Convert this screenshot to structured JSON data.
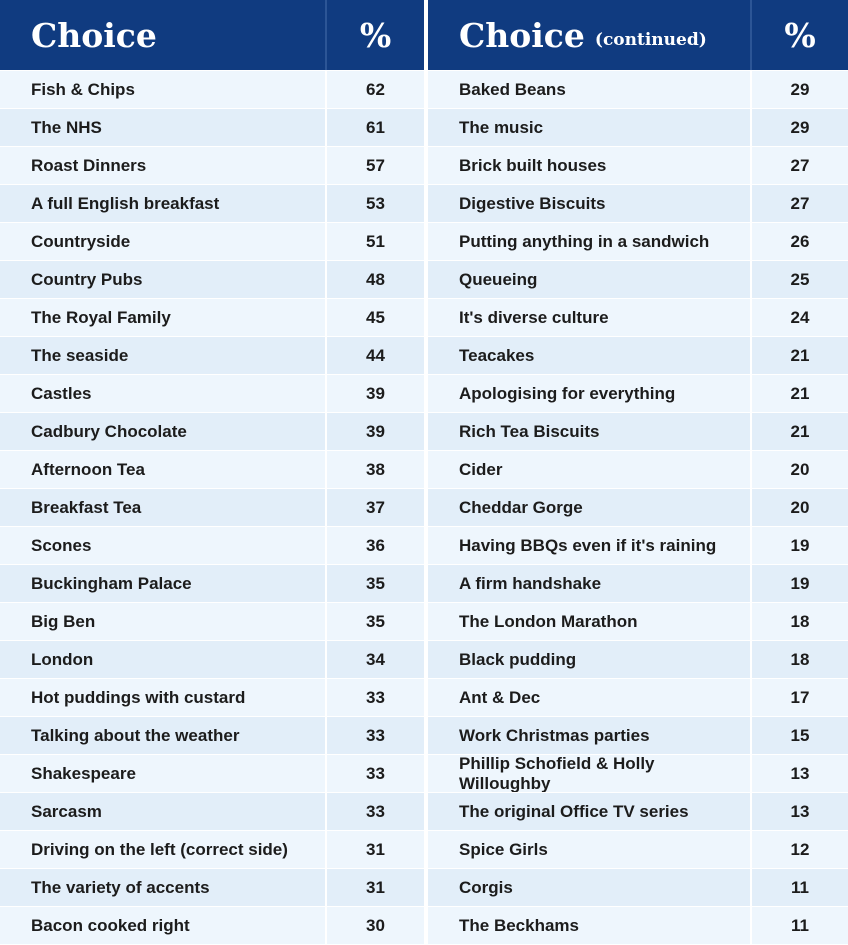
{
  "tables": [
    {
      "headers": [
        "Choice",
        "%"
      ],
      "rows": [
        [
          "Fish & Chips",
          62
        ],
        [
          "The NHS",
          61
        ],
        [
          "Roast Dinners",
          57
        ],
        [
          "A full English breakfast",
          53
        ],
        [
          "Countryside",
          51
        ],
        [
          "Country Pubs",
          48
        ],
        [
          "The Royal Family",
          45
        ],
        [
          "The seaside",
          44
        ],
        [
          "Castles",
          39
        ],
        [
          "Cadbury Chocolate",
          39
        ],
        [
          "Afternoon Tea",
          38
        ],
        [
          "Breakfast Tea",
          37
        ],
        [
          "Scones",
          36
        ],
        [
          "Buckingham Palace",
          35
        ],
        [
          "Big Ben",
          35
        ],
        [
          "London",
          34
        ],
        [
          "Hot puddings with custard",
          33
        ],
        [
          "Talking about the weather",
          33
        ],
        [
          "Shakespeare",
          33
        ],
        [
          "Sarcasm",
          33
        ],
        [
          "Driving on the left (correct side)",
          31
        ],
        [
          "The variety of accents",
          31
        ],
        [
          "Bacon cooked right",
          30
        ]
      ]
    },
    {
      "headers": [
        "Choice",
        "%"
      ],
      "header_note": "(continued)",
      "rows": [
        [
          "Baked Beans",
          29
        ],
        [
          "The music",
          29
        ],
        [
          "Brick built houses",
          27
        ],
        [
          "Digestive Biscuits",
          27
        ],
        [
          "Putting anything in a sandwich",
          26
        ],
        [
          "Queueing",
          25
        ],
        [
          "It's diverse culture",
          24
        ],
        [
          "Teacakes",
          21
        ],
        [
          "Apologising for everything",
          21
        ],
        [
          "Rich Tea Biscuits",
          21
        ],
        [
          "Cider",
          20
        ],
        [
          "Cheddar Gorge",
          20
        ],
        [
          "Having BBQs even if it's raining",
          19
        ],
        [
          "A firm handshake",
          19
        ],
        [
          "The London Marathon",
          18
        ],
        [
          "Black pudding",
          18
        ],
        [
          "Ant & Dec",
          17
        ],
        [
          "Work Christmas parties",
          15
        ],
        [
          "Phillip Schofield & Holly Willoughby",
          13
        ],
        [
          "The original Office TV series",
          13
        ],
        [
          "Spice Girls",
          12
        ],
        [
          "Corgis",
          11
        ],
        [
          "The Beckhams",
          11
        ]
      ]
    }
  ]
}
